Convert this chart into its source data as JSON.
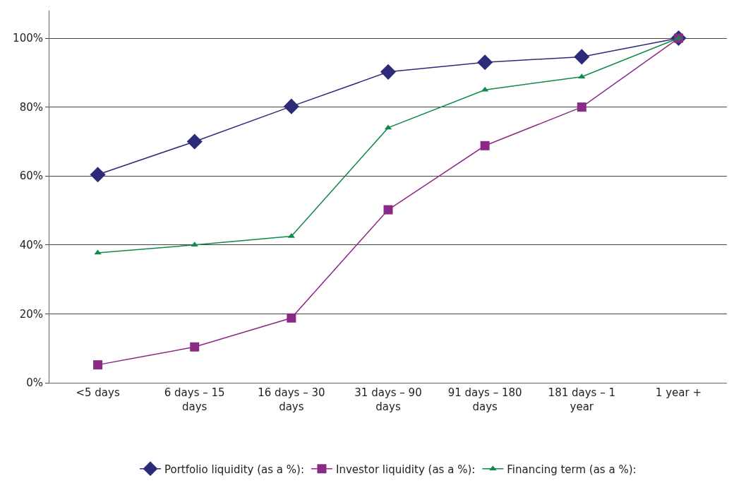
{
  "chart_data": {
    "type": "line",
    "categories": [
      "<5 days",
      "6 days – 15 days",
      "16 days – 30 days",
      "31 days – 90 days",
      "91 days – 180 days",
      "181 days – 1 year",
      "1 year +"
    ],
    "series": [
      {
        "name": "Portfolio liquidity (as a %):",
        "color": "#2e2a7a",
        "marker": "diamond",
        "values": [
          60.4,
          70,
          80.2,
          90.2,
          93,
          94.6,
          100
        ]
      },
      {
        "name": "Investor liquidity (as a %):",
        "color": "#8a2a86",
        "marker": "square",
        "values": [
          5.2,
          10.4,
          18.8,
          50.2,
          68.8,
          80,
          100
        ]
      },
      {
        "name": "Financing term (as a %):",
        "color": "#108a48",
        "marker": "triangle",
        "values": [
          37.7,
          40,
          42.5,
          74,
          85,
          88.8,
          100
        ]
      }
    ],
    "ylim": [
      0,
      108
    ],
    "yticks": [
      {
        "value": 0,
        "label": "0%"
      },
      {
        "value": 20,
        "label": "20%"
      },
      {
        "value": 40,
        "label": "40%"
      },
      {
        "value": 60,
        "label": "60%"
      },
      {
        "value": 80,
        "label": "80%"
      },
      {
        "value": 100,
        "label": "100%"
      }
    ],
    "grid": "y",
    "legend": "bottom",
    "line_style": "solid"
  }
}
